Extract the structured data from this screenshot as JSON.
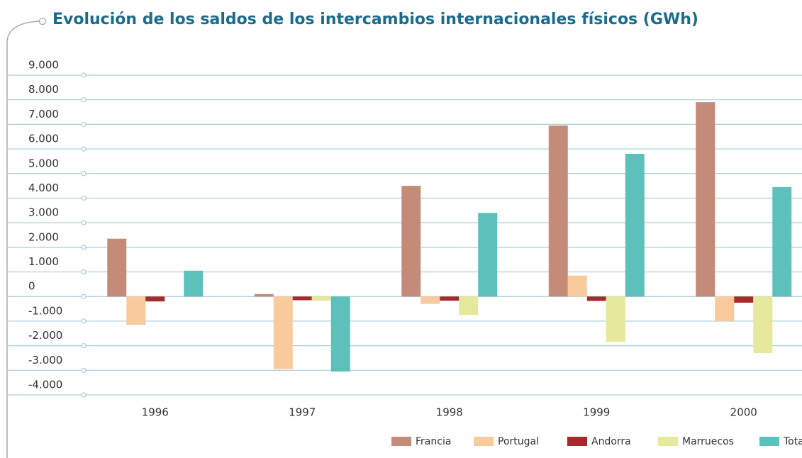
{
  "chart_data": {
    "type": "bar",
    "title": "Evolución de los saldos de los intercambios internacionales físicos (GWh)",
    "categories": [
      "1996",
      "1997",
      "1998",
      "1999",
      "2000"
    ],
    "series": [
      {
        "name": "Francia",
        "color": "#c48b79",
        "values": [
          2350,
          100,
          4500,
          6950,
          7900
        ]
      },
      {
        "name": "Portugal",
        "color": "#f8ca9c",
        "values": [
          -1150,
          -2950,
          -300,
          850,
          -1000
        ]
      },
      {
        "name": "Andorra",
        "color": "#a52b2b",
        "values": [
          -200,
          -150,
          -170,
          -180,
          -250
        ]
      },
      {
        "name": "Marruecos",
        "color": "#e6e99c",
        "values": [
          0,
          -170,
          -750,
          -1850,
          -2300
        ]
      },
      {
        "name": "Total",
        "color": "#5cc0bb",
        "values": [
          1050,
          -3050,
          3400,
          5800,
          4450
        ]
      }
    ],
    "ylim": [
      -4000,
      9000
    ],
    "yticks": [
      {
        "value": -4000,
        "label": "-4.000"
      },
      {
        "value": -3000,
        "label": "-3.000"
      },
      {
        "value": -2000,
        "label": "-2.000"
      },
      {
        "value": -1000,
        "label": "-1.000"
      },
      0,
      {
        "value": 1000,
        "label": "1.000"
      },
      {
        "value": 2000,
        "label": "2.000"
      },
      {
        "value": 3000,
        "label": "3.000"
      },
      {
        "value": 4000,
        "label": "4.000"
      },
      {
        "value": 5000,
        "label": "5.000"
      },
      {
        "value": 6000,
        "label": "6.000"
      },
      {
        "value": 7000,
        "label": "7.000"
      },
      {
        "value": 8000,
        "label": "8.000"
      },
      {
        "value": 9000,
        "label": "9.000"
      }
    ],
    "grid": true,
    "legend": "bottom-right"
  }
}
